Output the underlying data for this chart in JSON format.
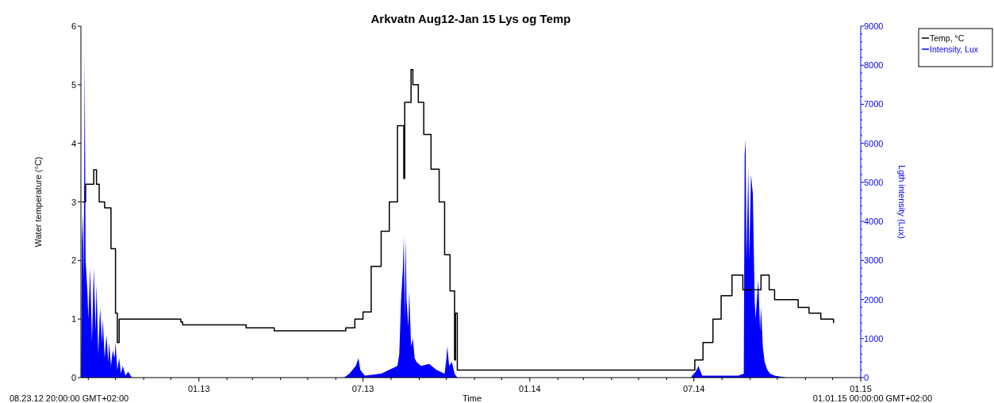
{
  "chart_data": {
    "type": "step",
    "title": "Arkvatn Aug12-Jan 15 Lys og Temp",
    "xlabel": "Time",
    "ylabel": "Water temperature (°C)",
    "y2label": "Lgth intensity (Lux)",
    "annotations": [
      "08.23.12 20:00:00 GMT+02:00",
      "01.01.15 00:00:00 GMT+02:00"
    ],
    "xlim": [
      "2012-08-23T20:00",
      "2015-01-01T00:00"
    ],
    "xticks": [
      {
        "value": "2012-09-01",
        "label": null
      },
      {
        "value": "2012-10-01",
        "label": null
      },
      {
        "value": "2012-11-01",
        "label": null
      },
      {
        "value": "2012-12-01",
        "label": null
      },
      {
        "value": "2013-01-01",
        "label": "01.13"
      },
      {
        "value": "2013-02-01",
        "label": null
      },
      {
        "value": "2013-03-01",
        "label": null
      },
      {
        "value": "2013-04-01",
        "label": null
      },
      {
        "value": "2013-05-01",
        "label": null
      },
      {
        "value": "2013-06-01",
        "label": null
      },
      {
        "value": "2013-07-01",
        "label": "07.13"
      },
      {
        "value": "2013-08-01",
        "label": null
      },
      {
        "value": "2013-09-01",
        "label": null
      },
      {
        "value": "2013-10-01",
        "label": null
      },
      {
        "value": "2013-11-01",
        "label": null
      },
      {
        "value": "2013-12-01",
        "label": null
      },
      {
        "value": "2014-01-01",
        "label": "01.14"
      },
      {
        "value": "2014-02-01",
        "label": null
      },
      {
        "value": "2014-03-01",
        "label": null
      },
      {
        "value": "2014-04-01",
        "label": null
      },
      {
        "value": "2014-05-01",
        "label": null
      },
      {
        "value": "2014-06-01",
        "label": null
      },
      {
        "value": "2014-07-01",
        "label": "07.14"
      },
      {
        "value": "2014-08-01",
        "label": null
      },
      {
        "value": "2014-09-01",
        "label": null
      },
      {
        "value": "2014-10-01",
        "label": null
      },
      {
        "value": "2014-11-01",
        "label": null
      },
      {
        "value": "2014-12-01",
        "label": null
      },
      {
        "value": "2015-01-01",
        "label": "01.15"
      }
    ],
    "ylim": [
      0,
      6
    ],
    "yticks": [
      0,
      1,
      2,
      3,
      4,
      5,
      6
    ],
    "y2lim": [
      0,
      9000
    ],
    "y2ticks": [
      0,
      {
        "value": 200,
        "label": null
      },
      {
        "value": 400,
        "label": null
      },
      {
        "value": 600,
        "label": null
      },
      {
        "value": 800,
        "label": null
      },
      1000,
      {
        "value": 1200,
        "label": null
      },
      {
        "value": 1400,
        "label": null
      },
      {
        "value": 1600,
        "label": null
      },
      {
        "value": 1800,
        "label": null
      },
      2000,
      {
        "value": 2200,
        "label": null
      },
      {
        "value": 2400,
        "label": null
      },
      {
        "value": 2600,
        "label": null
      },
      {
        "value": 2800,
        "label": null
      },
      3000,
      {
        "value": 3200,
        "label": null
      },
      {
        "value": 3400,
        "label": null
      },
      {
        "value": 3600,
        "label": null
      },
      {
        "value": 3800,
        "label": null
      },
      4000,
      {
        "value": 4200,
        "label": null
      },
      {
        "value": 4400,
        "label": null
      },
      {
        "value": 4600,
        "label": null
      },
      {
        "value": 4800,
        "label": null
      },
      5000,
      {
        "value": 5200,
        "label": null
      },
      {
        "value": 5400,
        "label": null
      },
      {
        "value": 5600,
        "label": null
      },
      {
        "value": 5800,
        "label": null
      },
      6000,
      {
        "value": 6200,
        "label": null
      },
      {
        "value": 6400,
        "label": null
      },
      {
        "value": 6600,
        "label": null
      },
      {
        "value": 6800,
        "label": null
      },
      7000,
      {
        "value": 7200,
        "label": null
      },
      {
        "value": 7400,
        "label": null
      },
      {
        "value": 7600,
        "label": null
      },
      {
        "value": 7800,
        "label": null
      },
      8000,
      {
        "value": 8200,
        "label": null
      },
      {
        "value": 8400,
        "label": null
      },
      {
        "value": 8600,
        "label": null
      },
      {
        "value": 8800,
        "label": null
      },
      9000
    ],
    "legend": "top right",
    "grid": false,
    "series": [
      {
        "name": "Temp, °C",
        "color": "#000000",
        "x": [
          "2012-08-25",
          "2012-08-29",
          "2012-09-07",
          "2012-09-10",
          "2012-09-13",
          "2012-09-19",
          "2012-09-26",
          "2012-10-01",
          "2012-10-03",
          "2012-10-05",
          "2012-12-12",
          "2012-12-14",
          "2013-02-22",
          "2013-03-25",
          "2013-06-12",
          "2013-06-22",
          "2013-07-01",
          "2013-07-10",
          "2013-07-21",
          "2013-07-30",
          "2013-08-08",
          "2013-08-15",
          "2013-08-16",
          "2013-08-23",
          "2013-08-25",
          "2013-08-31",
          "2013-09-06",
          "2013-09-14",
          "2013-09-23",
          "2013-09-29",
          "2013-10-05",
          "2013-10-10",
          "2013-10-11",
          "2013-10-13",
          "2014-06-28",
          "2014-07-02",
          "2014-07-11",
          "2014-07-22",
          "2014-07-31",
          "2014-08-12",
          "2014-08-24",
          "2014-09-13",
          "2014-09-22",
          "2014-09-28",
          "2014-10-22",
          "2014-10-24",
          "2014-11-05",
          "2014-11-18",
          "2014-12-02"
        ],
        "values": [
          3.0,
          3.3,
          3.55,
          3.3,
          3.0,
          2.9,
          2.2,
          1.1,
          0.6,
          1.0,
          0.95,
          0.9,
          0.85,
          0.8,
          0.85,
          1.0,
          1.12,
          1.9,
          2.5,
          3.0,
          4.3,
          3.4,
          4.7,
          5.26,
          5.0,
          4.7,
          4.15,
          3.56,
          3.0,
          2.1,
          1.48,
          0.3,
          1.1,
          0.13,
          0.13,
          0.3,
          0.6,
          1.0,
          1.4,
          1.75,
          1.5,
          1.75,
          1.5,
          1.33,
          1.33,
          1.2,
          1.1,
          1.0,
          0.93
        ]
      },
      {
        "name": "Intensity, Lux",
        "color": "#0000ff",
        "type": "area",
        "axis": "y2",
        "x": [
          "2012-08-24",
          "2012-08-25",
          "2012-08-26",
          "2012-08-27",
          "2012-08-28",
          "2012-08-29",
          "2012-08-31",
          "2012-09-01",
          "2012-09-03",
          "2012-09-05",
          "2012-09-07",
          "2012-09-09",
          "2012-09-10",
          "2012-09-12",
          "2012-09-14",
          "2012-09-16",
          "2012-09-17",
          "2012-09-19",
          "2012-09-21",
          "2012-09-23",
          "2012-09-24",
          "2012-09-26",
          "2012-09-28",
          "2012-09-30",
          "2012-10-01",
          "2012-10-03",
          "2012-10-05",
          "2012-10-07",
          "2012-10-09",
          "2012-10-12",
          "2012-10-15",
          "2012-10-19",
          "2013-06-10",
          "2013-06-16",
          "2013-06-23",
          "2013-06-26",
          "2013-06-28",
          "2013-07-03",
          "2013-07-21",
          "2013-08-08",
          "2013-08-10",
          "2013-08-12",
          "2013-08-14",
          "2013-08-15",
          "2013-08-16",
          "2013-08-17",
          "2013-08-18",
          "2013-08-20",
          "2013-08-21",
          "2013-08-23",
          "2013-08-25",
          "2013-08-27",
          "2013-08-29",
          "2013-09-03",
          "2013-09-12",
          "2013-09-20",
          "2013-09-29",
          "2013-10-01",
          "2013-10-02",
          "2013-10-04",
          "2013-10-07",
          "2013-10-10",
          "2013-10-13",
          "2014-06-28",
          "2014-06-29",
          "2014-07-03",
          "2014-07-06",
          "2014-07-10",
          "2014-08-19",
          "2014-08-25",
          "2014-08-26",
          "2014-08-27",
          "2014-08-28",
          "2014-08-30",
          "2014-08-31",
          "2014-09-02",
          "2014-09-04",
          "2014-09-06",
          "2014-09-07",
          "2014-09-10",
          "2014-09-12",
          "2014-09-13",
          "2014-09-15",
          "2014-09-17",
          "2014-09-20",
          "2014-09-23",
          "2014-09-28",
          "2014-10-11"
        ],
        "values": [
          0,
          3500,
          4200,
          2500,
          8300,
          3000,
          2200,
          1500,
          2800,
          900,
          2800,
          1200,
          2400,
          600,
          1800,
          900,
          1500,
          500,
          1100,
          400,
          900,
          300,
          700,
          500,
          900,
          200,
          500,
          100,
          300,
          50,
          150,
          0,
          0,
          100,
          300,
          500,
          200,
          50,
          100,
          300,
          600,
          2000,
          2800,
          3600,
          1500,
          3600,
          2000,
          1300,
          2200,
          800,
          1000,
          500,
          400,
          300,
          350,
          200,
          100,
          500,
          800,
          300,
          400,
          100,
          0,
          0,
          50,
          150,
          300,
          50,
          50,
          100,
          5700,
          6100,
          3000,
          5400,
          3000,
          5200,
          4700,
          2000,
          1500,
          2500,
          1200,
          1800,
          800,
          400,
          200,
          100,
          50,
          0
        ]
      }
    ]
  }
}
